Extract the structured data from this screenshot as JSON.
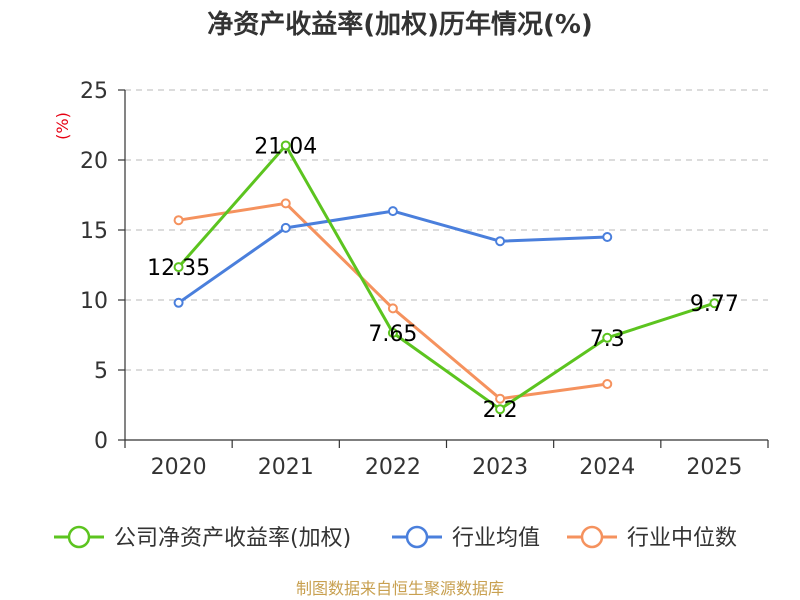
{
  "chart_data": {
    "type": "line",
    "title": "净资产收益率(加权)历年情况(%)",
    "ylabel": "(%)",
    "xlabel": "",
    "categories": [
      "2020",
      "2021",
      "2022",
      "2023",
      "2024",
      "2025"
    ],
    "ylim": [
      0,
      25
    ],
    "yticks": [
      0,
      5,
      10,
      15,
      20,
      25
    ],
    "grid": true,
    "legend_position": "bottom",
    "series": [
      {
        "name": "公司净资产收益率(加权)",
        "color": "#5cc41f",
        "values": [
          12.35,
          21.04,
          7.65,
          2.2,
          7.3,
          9.77
        ],
        "labels": [
          "12.35",
          "21.04",
          "7.65",
          "2.2",
          "7.3",
          "9.77"
        ]
      },
      {
        "name": "行业均值",
        "color": "#4a7fdc",
        "values": [
          9.8,
          15.15,
          16.35,
          14.2,
          14.5,
          null
        ]
      },
      {
        "name": "行业中位数",
        "color": "#f5925e",
        "values": [
          15.7,
          16.9,
          9.4,
          2.95,
          4.0,
          null
        ]
      }
    ],
    "source": "制图数据来自恒生聚源数据库"
  }
}
